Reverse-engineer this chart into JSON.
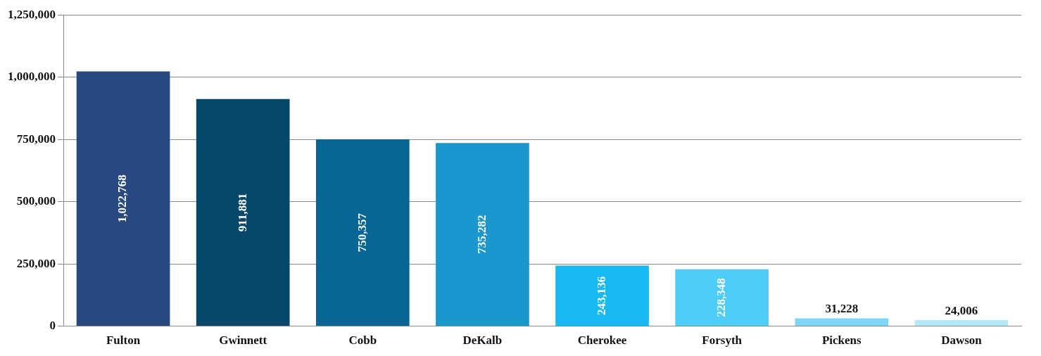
{
  "chart_data": {
    "type": "bar",
    "categories": [
      "Fulton",
      "Gwinnett",
      "Cobb",
      "DeKalb",
      "Cherokee",
      "Forsyth",
      "Pickens",
      "Dawson"
    ],
    "values": [
      1022768,
      911881,
      750357,
      735282,
      243136,
      228348,
      31228,
      24006
    ],
    "colors": [
      "#27497f",
      "#07486a",
      "#0a6597",
      "#1a97cd",
      "#17b9f2",
      "#4fcdf9",
      "#7bd7f4",
      "#b2e8f8"
    ],
    "value_labels": [
      "1,022,768",
      "911,881",
      "750,357",
      "735,282",
      "243,136",
      "228,348",
      "31,228",
      "24,006"
    ],
    "ylim": [
      0,
      1250000
    ],
    "yticks": [
      0,
      {
        "value": 250000,
        "label": "250,000"
      },
      {
        "value": 500000,
        "label": "500,000"
      },
      {
        "value": 750000,
        "label": "750,000"
      },
      {
        "value": 1000000,
        "label": "1,000,000"
      },
      {
        "value": 1250000,
        "label": "1,250,000"
      }
    ],
    "grid": "y"
  }
}
